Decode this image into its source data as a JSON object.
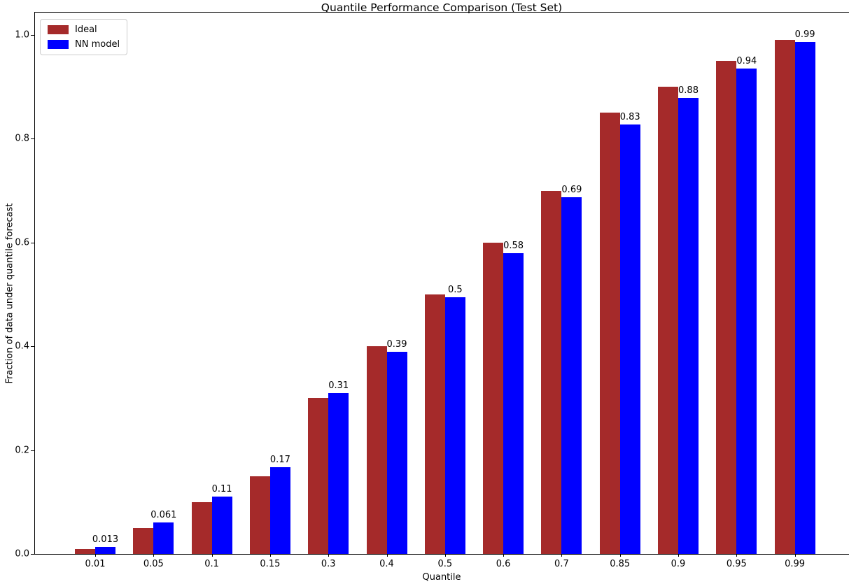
{
  "chart_data": {
    "type": "bar",
    "title": "Quantile Performance Comparison (Test Set)",
    "xlabel": "Quantile",
    "ylabel": "Fraction of data under quantile forecast",
    "categories": [
      "0.01",
      "0.05",
      "0.1",
      "0.15",
      "0.3",
      "0.4",
      "0.5",
      "0.6",
      "0.7",
      "0.85",
      "0.9",
      "0.95",
      "0.99"
    ],
    "series": [
      {
        "name": "Ideal",
        "color": "#A52A2A",
        "values": [
          0.01,
          0.05,
          0.1,
          0.15,
          0.3,
          0.4,
          0.5,
          0.6,
          0.7,
          0.85,
          0.9,
          0.95,
          0.99
        ]
      },
      {
        "name": "NN model",
        "color": "#0000FF",
        "values": [
          0.013,
          0.061,
          0.11,
          0.167,
          0.31,
          0.39,
          0.495,
          0.58,
          0.687,
          0.827,
          0.879,
          0.935,
          0.987
        ],
        "labels": [
          "0.013",
          "0.061",
          "0.11",
          "0.17",
          "0.31",
          "0.39",
          "0.5",
          "0.58",
          "0.69",
          "0.83",
          "0.88",
          "0.94",
          "0.99"
        ]
      }
    ],
    "ylim": [
      0,
      1.043
    ],
    "yticks": [
      0.0,
      0.2,
      0.4,
      0.6,
      0.8,
      1.0
    ],
    "ytick_labels": [
      "0.0",
      "0.2",
      "0.4",
      "0.6",
      "0.8",
      "1.0"
    ],
    "legend_position": "upper left",
    "grid": false,
    "annotated_series": "NN model"
  }
}
